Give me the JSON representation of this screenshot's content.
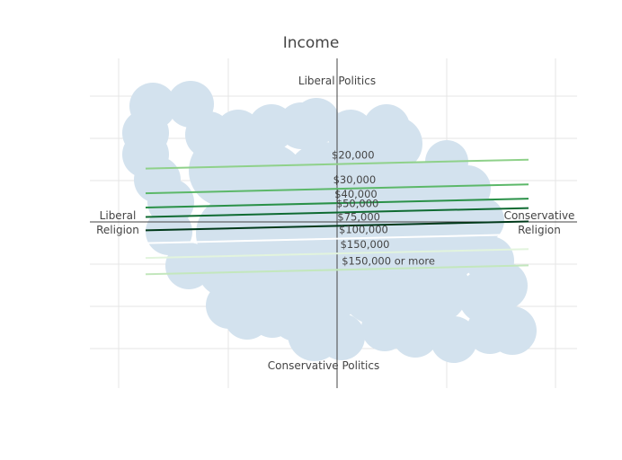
{
  "chart_data": {
    "type": "line",
    "title": "Income",
    "quadrant_labels": {
      "top": "Liberal Politics",
      "bottom": "Conservative Politics",
      "left": "Liberal\nReligion",
      "right": "Conservative\nReligion"
    },
    "xlim": [
      -1.0,
      1.1
    ],
    "ylim": [
      -1.05,
      1.05
    ],
    "grid": true,
    "series": [
      {
        "name": "$20,000",
        "color": "#8fd18a",
        "x": [
          -0.8,
          0.8
        ],
        "y": [
          0.54,
          0.63
        ]
      },
      {
        "name": "$30,000",
        "color": "#5cb869",
        "x": [
          -0.8,
          0.8
        ],
        "y": [
          0.29,
          0.38
        ]
      },
      {
        "name": "$40,000",
        "color": "#2a9148",
        "x": [
          -0.8,
          0.8
        ],
        "y": [
          0.145,
          0.235
        ]
      },
      {
        "name": "$50,000",
        "color": "#0f6b32",
        "x": [
          -0.8,
          0.8
        ],
        "y": [
          0.05,
          0.14
        ]
      },
      {
        "name": "$75,000",
        "color": "#00391a",
        "x": [
          -0.8,
          0.8
        ],
        "y": [
          -0.085,
          0.005
        ]
      },
      {
        "name": "$100,000",
        "color": "#ffffff",
        "x": [
          -0.8,
          0.8
        ],
        "y": [
          -0.215,
          -0.125
        ]
      },
      {
        "name": "$150,000",
        "color": "#e2f4dd",
        "x": [
          -0.8,
          0.8
        ],
        "y": [
          -0.365,
          -0.275
        ]
      },
      {
        "name": "$150,000 or more",
        "color": "#c3e7bd",
        "x": [
          -0.8,
          0.8
        ],
        "y": [
          -0.53,
          -0.44
        ]
      }
    ],
    "background_color": "#d3e2ee"
  }
}
